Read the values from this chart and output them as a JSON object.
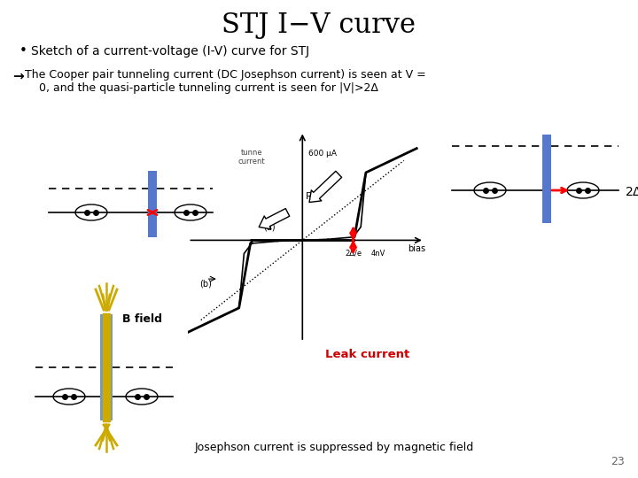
{
  "title": "STJ I−V curve",
  "title_fontsize": 22,
  "title_font": "serif",
  "bg_color": "#ffffff",
  "bullet1": "Sketch of a current-voltage (I-V) curve for STJ",
  "bullet2": "The Cooper pair tunneling current (DC Josephson current) is seen at V =\n    0, and the quasi-particle tunneling current is seen for |V|>2Δ",
  "page_number": "23",
  "josephson_text": "Josephson current is suppressed by magnetic field"
}
